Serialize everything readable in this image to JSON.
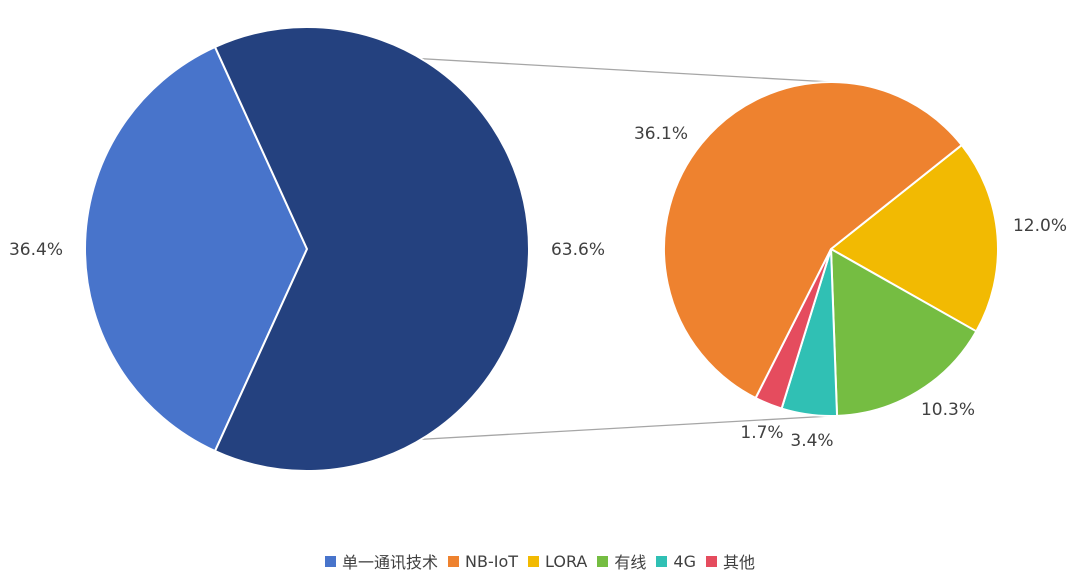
{
  "chart_data": {
    "type": "bar-of-pie",
    "main_pie": {
      "slices": [
        {
          "name": "单一通讯技术",
          "value": 36.4,
          "label": "36.4%",
          "color": "#4874CB"
        },
        {
          "name": "",
          "value": 63.6,
          "label": "63.6%",
          "color": "#24417F"
        }
      ]
    },
    "secondary_pie": {
      "slices": [
        {
          "name": "NB-IoT",
          "value": 36.1,
          "label": "36.1%",
          "color": "#EE822F"
        },
        {
          "name": "LORA",
          "value": 12.0,
          "label": "12.0%",
          "color": "#F2BA02"
        },
        {
          "name": "有线",
          "value": 10.3,
          "label": "10.3%",
          "color": "#75BD42"
        },
        {
          "name": "4G",
          "value": 3.4,
          "label": "3.4%",
          "color": "#30C0B4"
        },
        {
          "name": "其他",
          "value": 1.7,
          "label": "1.7%",
          "color": "#E54C5E"
        }
      ]
    },
    "connector_color": "#A6A6A6",
    "legend_position": "bottom",
    "legend": [
      {
        "name": "单一通讯技术",
        "color": "#4874CB"
      },
      {
        "name": "NB-IoT",
        "color": "#EE822F"
      },
      {
        "name": "LORA",
        "color": "#F2BA02"
      },
      {
        "name": "有线",
        "color": "#75BD42"
      },
      {
        "name": "4G",
        "color": "#30C0B4"
      },
      {
        "name": "其他",
        "color": "#E54C5E"
      }
    ]
  }
}
